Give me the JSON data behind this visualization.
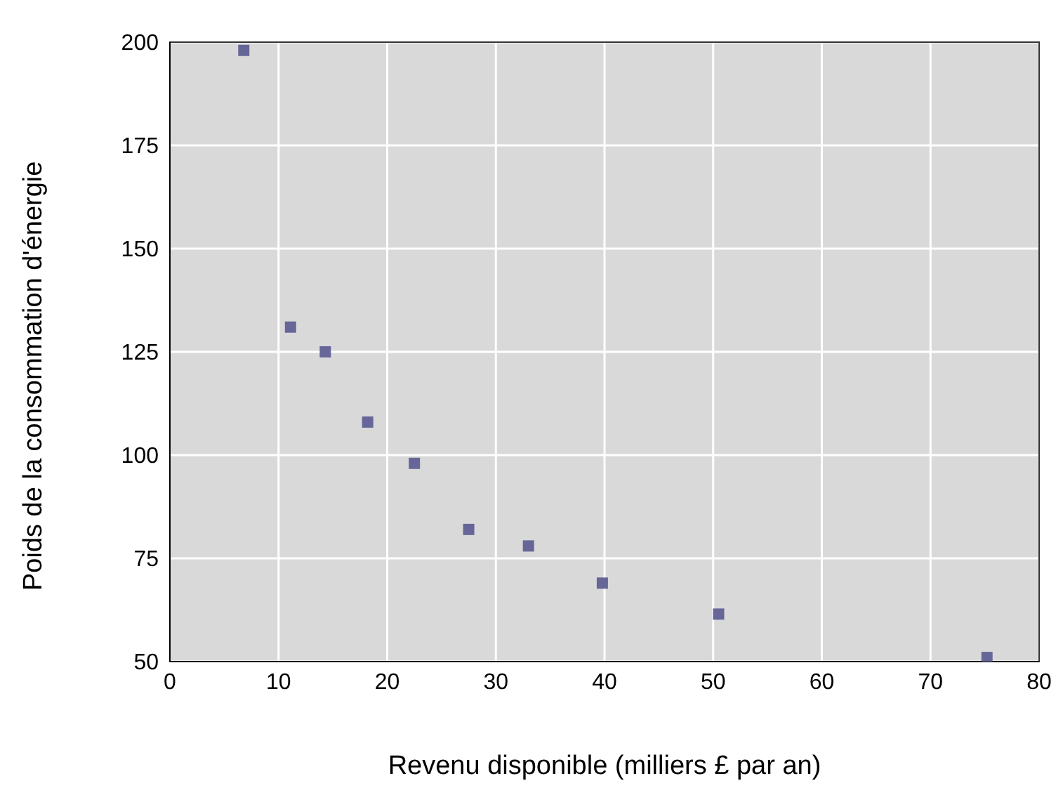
{
  "chart_data": {
    "type": "scatter",
    "xlabel": "Revenu disponible (milliers £ par an)",
    "ylabel": "Poids de la consommation d'énergie",
    "x": [
      6.8,
      11.1,
      14.3,
      18.2,
      22.5,
      27.5,
      33,
      39.8,
      50.5,
      75.2
    ],
    "series": [
      {
        "color": "#666699",
        "values": [
          198,
          131,
          125,
          108,
          98,
          82,
          78,
          69,
          61.5,
          51
        ]
      }
    ],
    "xlim": [
      0,
      80
    ],
    "xticks": [
      0,
      10,
      20,
      30,
      40,
      50,
      60,
      70,
      80
    ],
    "ylim": [
      50,
      200
    ],
    "yticks": [
      50,
      75,
      100,
      125,
      150,
      175,
      200
    ],
    "grid": true,
    "marker": "square"
  }
}
